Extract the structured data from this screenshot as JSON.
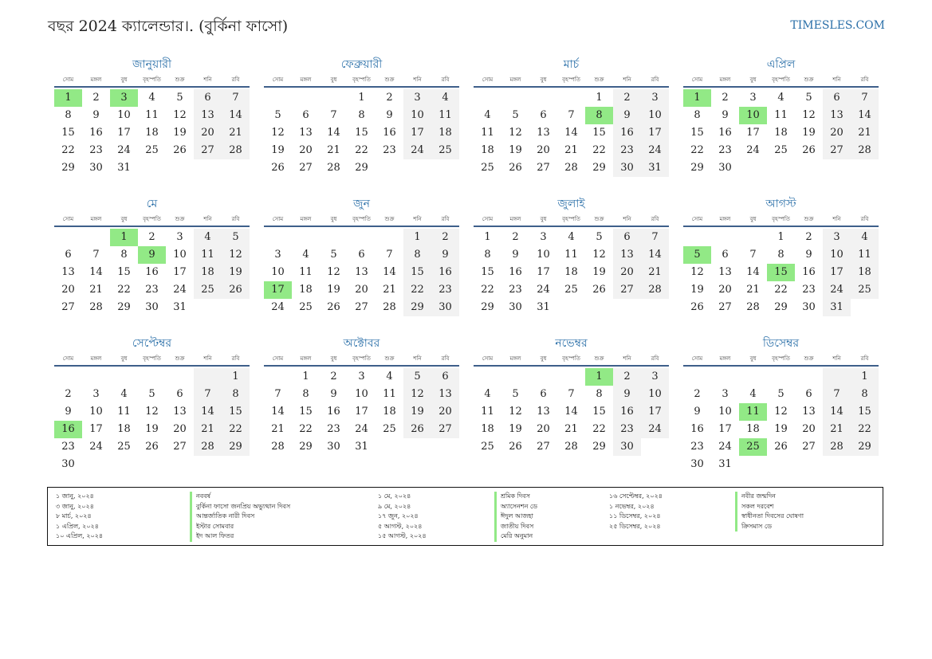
{
  "header": {
    "title": "বছর 2024 ক্যালেন্ডার।. (বুর্কিনা ফাসো)",
    "site": "TIMESLES.COM"
  },
  "weekdays": [
    "সোম",
    "মঙ্গল",
    "বুধ",
    "বৃহস্পতি",
    "শুক্র",
    "শনি",
    "রবি"
  ],
  "colors": {
    "holiday": "#92e986",
    "weekend": "#f2f2f2",
    "accent": "#2a6fa8",
    "rule": "#3e5f8a"
  },
  "months": [
    {
      "name": "জানুয়ারী",
      "offset": 0,
      "days": 31,
      "holidays": [
        1,
        3
      ]
    },
    {
      "name": "ফেব্রুয়ারী",
      "offset": 3,
      "days": 29,
      "holidays": []
    },
    {
      "name": "মার্চ",
      "offset": 4,
      "days": 31,
      "holidays": [
        8
      ]
    },
    {
      "name": "এপ্রিল",
      "offset": 0,
      "days": 30,
      "holidays": [
        1,
        10
      ]
    },
    {
      "name": "মে",
      "offset": 2,
      "days": 31,
      "holidays": [
        1,
        9
      ]
    },
    {
      "name": "জুন",
      "offset": 5,
      "days": 30,
      "holidays": [
        17
      ]
    },
    {
      "name": "জুলাই",
      "offset": 0,
      "days": 31,
      "holidays": []
    },
    {
      "name": "আগস্ট",
      "offset": 3,
      "days": 31,
      "holidays": [
        5,
        15
      ]
    },
    {
      "name": "সেপ্টেম্বর",
      "offset": 6,
      "days": 30,
      "holidays": [
        16
      ]
    },
    {
      "name": "অক্টোবর",
      "offset": 1,
      "days": 31,
      "holidays": []
    },
    {
      "name": "নভেম্বর",
      "offset": 4,
      "days": 30,
      "holidays": [
        1
      ]
    },
    {
      "name": "ডিসেম্বর",
      "offset": 6,
      "days": 31,
      "holidays": [
        11,
        25
      ]
    }
  ],
  "legend": {
    "col1": {
      "dates": [
        "১ জানু, ২০২৪",
        "৩ জানু, ২০২৪",
        "৮ মার্চ, ২০২৪",
        "১ এপ্রিল, ২০২৪",
        "১০ এপ্রিল, ২০২৪"
      ],
      "names": [
        "নববর্ষ",
        "বুর্কিনা ফাসো জনপ্রিয় অভ্যুত্থান দিবস",
        "আন্তর্জাতিক নারী দিবস",
        "ইস্টার সোমবার",
        "ইদ আল ফিতর"
      ]
    },
    "col2": {
      "dates": [
        "১ মে, ২০২৪",
        "৯ মে, ২০২৪",
        "১৭ জুন, ২০২৪",
        "৫ আগস্ট, ২০২৪",
        "১৫ আগস্ট, ২০২৪"
      ],
      "names": [
        "শ্রমিক দিবস",
        "অ্যাসেনশন ডে",
        "ঈদুল আজহা",
        "জাতীয় দিবস",
        "মেরি অনুমান"
      ]
    },
    "col3": {
      "dates": [
        "১৬ সেপ্টেম্বর, ২০২৪",
        "১ নভেম্বর, ২০২৪",
        "১১ ডিসেম্বর, ২০২৪",
        "২৫ ডিসেম্বর, ২০২৪"
      ],
      "names": [
        "নবীর জন্মদিন",
        "সকল দরবেশ",
        "স্বাধীনতা দিবসের ঘোষণা",
        "ক্রিসমাস ডে"
      ]
    }
  }
}
